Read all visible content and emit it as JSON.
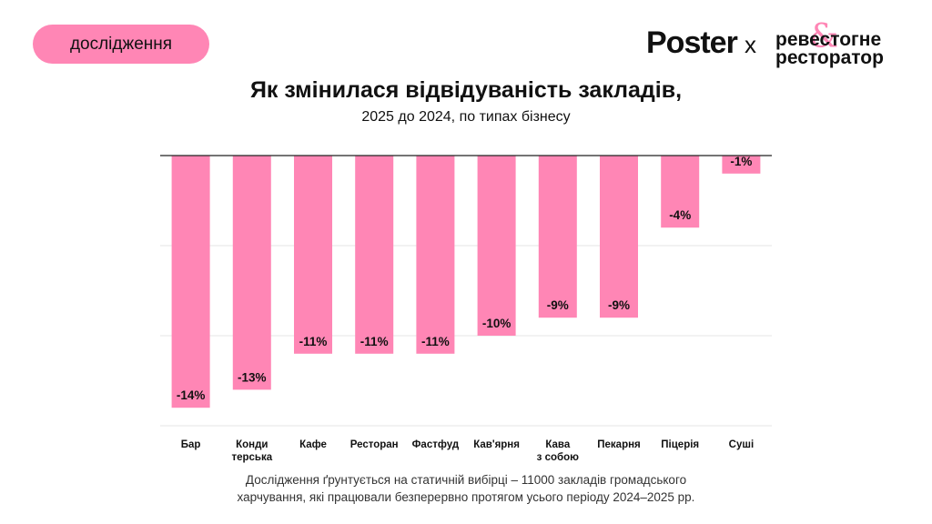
{
  "header": {
    "badge": "дослідження",
    "brand_poster": "Poster",
    "brand_x": "x",
    "brand_line1": "ревестогне",
    "brand_line2": "ресторатор",
    "brand_amp": "&"
  },
  "chart_data": {
    "type": "bar",
    "title": "Як змінилася відвідуваність закладів,",
    "subtitle": "2025 до 2024, по типах бізнесу",
    "categories": [
      [
        "Бар"
      ],
      [
        "Конди",
        "терська"
      ],
      [
        "Кафе"
      ],
      [
        "Ресторан"
      ],
      [
        "Фастфуд"
      ],
      [
        "Кав'ярня"
      ],
      [
        "Кава",
        "з собою"
      ],
      [
        "Пекарня"
      ],
      [
        "Піцерія"
      ],
      [
        "Суші"
      ]
    ],
    "values": [
      -14,
      -13,
      -11,
      -11,
      -11,
      -10,
      -9,
      -9,
      -4,
      -1
    ],
    "data_labels": [
      "-14%",
      "-13%",
      "-11%",
      "-11%",
      "-11%",
      "-10%",
      "-9%",
      "-9%",
      "-4%",
      "-1%"
    ],
    "ylim": [
      -15,
      0
    ],
    "grid": true,
    "colors": {
      "bar": "#ff86b5",
      "badge": "#ff86b5",
      "grid": "#e6e6e6",
      "axis": "#222222"
    }
  },
  "footnote": {
    "line1": "Дослідження ґрунтується на статичній вибірці – 11000 закладів громадського",
    "line2": "харчування, які працювали безперервно протягом усього періоду 2024–2025 рр."
  }
}
